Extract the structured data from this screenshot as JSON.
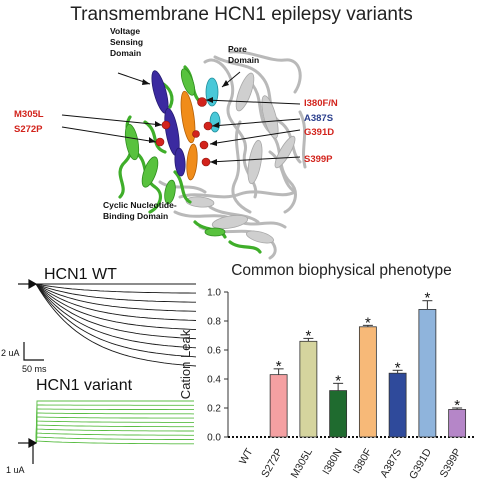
{
  "title": "Transmembrane HCN1 epilepsy variants",
  "structure": {
    "domain_labels": {
      "voltage": [
        "Voltage",
        "Sensing",
        "Domain"
      ],
      "pore": [
        "Pore",
        "Domain"
      ],
      "cnbd": [
        "Cyclic Nucleotide-",
        "Binding Domain"
      ]
    },
    "variant_labels_left": [
      {
        "text": "M305L",
        "color": "#d2231c"
      },
      {
        "text": "S272P",
        "color": "#d2231c"
      }
    ],
    "variant_labels_right": [
      {
        "text": "I380F/N",
        "color": "#d2231c",
        "suffix_color": "#2a3e8c"
      },
      {
        "text": "A387S",
        "color": "#2a3e8c"
      },
      {
        "text": "G391D",
        "color": "#d2231c"
      },
      {
        "text": "S399P",
        "color": "#d2231c"
      }
    ]
  },
  "traces": {
    "wt_title": "HCN1 WT",
    "variant_title": "HCN1 variant",
    "wt_scale_current": "2 uA",
    "wt_scale_time": "50 ms",
    "variant_scale_current": "1 uA",
    "wt_color": "#1a1a1a",
    "variant_color": "#5bbd45"
  },
  "chart_data": {
    "type": "bar",
    "title": "Common biophysical phenotype",
    "ylabel": "Cation Leak",
    "xlabel": "",
    "ylim": [
      0,
      1.0
    ],
    "yticks": [
      "0.0",
      "0.2",
      "0.4",
      "0.6",
      "0.8",
      "1.0"
    ],
    "categories": [
      "WT",
      "S272P",
      "M305L",
      "I380N",
      "I380F",
      "A387S",
      "G391D",
      "S399P"
    ],
    "values": [
      0.0,
      0.43,
      0.66,
      0.32,
      0.76,
      0.44,
      0.88,
      0.19
    ],
    "errors": [
      0.0,
      0.04,
      0.02,
      0.05,
      0.01,
      0.02,
      0.06,
      0.01
    ],
    "significance": [
      "",
      "*",
      "*",
      "*",
      "*",
      "*",
      "*",
      "*"
    ],
    "colors": [
      "#ffffff",
      "#f4a0a2",
      "#d5d49e",
      "#1f6b2f",
      "#f7b978",
      "#2f4a9b",
      "#8fb4dc",
      "#b586c8"
    ],
    "baseline_style": "dotted"
  }
}
